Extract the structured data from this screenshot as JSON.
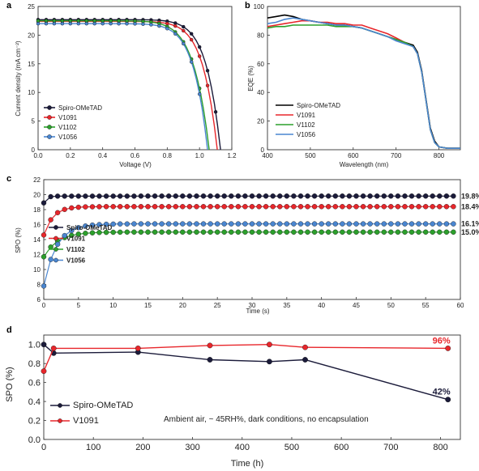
{
  "colors": {
    "spiro": "#1b1b3a",
    "v1091": "#e8262b",
    "v1102": "#2ca02c",
    "v1056": "#4a86d0"
  },
  "chart_data": [
    {
      "panel": "a",
      "type": "line",
      "xlabel": "Voltage (V)",
      "ylabel": "Current density (mA cm⁻²)",
      "xlim": [
        0.0,
        1.2
      ],
      "ylim": [
        0,
        25
      ],
      "xticks": [
        "0.0",
        "0.2",
        "0.4",
        "0.6",
        "0.8",
        "1.0",
        "1.2"
      ],
      "yticks": [
        "0",
        "5",
        "10",
        "15",
        "20",
        "25"
      ],
      "legend": "bottom-left",
      "series": [
        {
          "name": "Spiro-OMeTAD",
          "color": "#1b1b3a",
          "jsc": 22.7,
          "voc": 1.13,
          "fill": 0.84,
          "marker": true
        },
        {
          "name": "V1091",
          "color": "#e8262b",
          "jsc": 22.4,
          "voc": 1.11,
          "fill": 0.82,
          "marker": true
        },
        {
          "name": "V1102",
          "color": "#2ca02c",
          "jsc": 22.5,
          "voc": 1.06,
          "fill": 0.72,
          "marker": true
        },
        {
          "name": "V1056",
          "color": "#4a86d0",
          "jsc": 22.0,
          "voc": 1.05,
          "fill": 0.78,
          "marker": true
        }
      ]
    },
    {
      "panel": "b",
      "type": "line",
      "xlabel": "Wavelength (nm)",
      "ylabel": "EQE (%)",
      "xlim": [
        400,
        850
      ],
      "ylim": [
        0,
        100
      ],
      "xticks": [
        "400",
        "500",
        "600",
        "700",
        "800"
      ],
      "yticks": [
        "0",
        "20",
        "40",
        "60",
        "80",
        "100"
      ],
      "legend": "bottom-left",
      "series": [
        {
          "name": "Spiro-OMeTAD",
          "color": "#000000",
          "x": [
            400,
            420,
            440,
            460,
            480,
            500,
            520,
            540,
            560,
            580,
            600,
            620,
            640,
            660,
            680,
            700,
            720,
            740,
            750,
            760,
            770,
            780,
            790,
            800,
            820,
            840,
            850
          ],
          "y": [
            92,
            93,
            94,
            93,
            91,
            90,
            89,
            88,
            87,
            87,
            86,
            85,
            83,
            81,
            79,
            77,
            75,
            73,
            68,
            55,
            35,
            15,
            6,
            2,
            1,
            1,
            1
          ]
        },
        {
          "name": "V1091",
          "color": "#e8262b",
          "x": [
            400,
            420,
            440,
            460,
            480,
            500,
            520,
            540,
            560,
            580,
            600,
            620,
            640,
            660,
            680,
            700,
            720,
            740,
            750,
            760,
            770,
            780,
            790,
            800,
            820,
            840,
            850
          ],
          "y": [
            86,
            87,
            88,
            89,
            90,
            90,
            89,
            89,
            88,
            88,
            87,
            87,
            85,
            83,
            81,
            78,
            75,
            72,
            67,
            54,
            34,
            14,
            5,
            2,
            1,
            1,
            1
          ]
        },
        {
          "name": "V1102",
          "color": "#2ca02c",
          "x": [
            400,
            420,
            440,
            460,
            480,
            500,
            520,
            540,
            560,
            580,
            600,
            620,
            640,
            660,
            680,
            700,
            720,
            740,
            750,
            760,
            770,
            780,
            790,
            800,
            820,
            840,
            850
          ],
          "y": [
            85,
            86,
            86,
            87,
            87,
            87,
            87,
            87,
            86,
            86,
            86,
            85,
            83,
            81,
            79,
            77,
            75,
            72,
            67,
            54,
            34,
            14,
            5,
            2,
            1,
            1,
            1
          ]
        },
        {
          "name": "V1056",
          "color": "#4a86d0",
          "x": [
            400,
            420,
            440,
            460,
            480,
            500,
            520,
            540,
            560,
            580,
            600,
            620,
            640,
            660,
            680,
            700,
            720,
            740,
            750,
            760,
            770,
            780,
            790,
            800,
            820,
            840,
            850
          ],
          "y": [
            88,
            89,
            91,
            92,
            91,
            90,
            89,
            88,
            87,
            87,
            86,
            85,
            83,
            81,
            79,
            76,
            74,
            72,
            67,
            54,
            34,
            14,
            5,
            2,
            1,
            1,
            1
          ]
        }
      ]
    },
    {
      "panel": "c",
      "type": "line",
      "xlabel": "Time (s)",
      "ylabel": "SPO (%)",
      "xlim": [
        0,
        60
      ],
      "ylim": [
        6,
        22
      ],
      "xticks": [
        "0",
        "5",
        "10",
        "15",
        "20",
        "25",
        "30",
        "35",
        "40",
        "45",
        "50",
        "55",
        "60"
      ],
      "yticks": [
        "6",
        "8",
        "10",
        "12",
        "14",
        "16",
        "18",
        "20",
        "22"
      ],
      "legend": "bottom-left",
      "series": [
        {
          "name": "Spiro-OMeTAD",
          "color": "#1b1b3a",
          "start": 18.9,
          "final": 19.8,
          "tau": 0.4,
          "end_label": "19.8%"
        },
        {
          "name": "V1091",
          "color": "#e8262b",
          "start": 14.6,
          "final": 18.4,
          "tau": 1.3,
          "end_label": "18.4%"
        },
        {
          "name": "V1102",
          "color": "#2ca02c",
          "start": 11.7,
          "final": 15.0,
          "tau": 2.0,
          "end_label": "15.0%"
        },
        {
          "name": "V1056",
          "color": "#4a86d0",
          "start": 7.8,
          "final": 16.1,
          "tau": 1.8,
          "end_label": "16.1%"
        }
      ]
    },
    {
      "panel": "d",
      "type": "line",
      "xlabel": "Time (h)",
      "ylabel": "SPO (%)",
      "xlim": [
        0,
        840
      ],
      "ylim": [
        0.0,
        1.1
      ],
      "xticks": [
        "0",
        "100",
        "200",
        "300",
        "400",
        "500",
        "600",
        "700",
        "800"
      ],
      "yticks": [
        "0.0",
        "0.2",
        "0.4",
        "0.6",
        "0.8",
        "1.0"
      ],
      "legend": "bottom-left",
      "annotation": "Ambient air, ~ 45RH%, dark conditions, no encapsulation",
      "series": [
        {
          "name": "Spiro-OMeTAD",
          "color": "#1b1b3a",
          "x": [
            0,
            20,
            190,
            335,
            455,
            527,
            815
          ],
          "y": [
            1.0,
            0.91,
            0.92,
            0.84,
            0.82,
            0.84,
            0.42
          ],
          "end_label": "42%"
        },
        {
          "name": "V1091",
          "color": "#e8262b",
          "x": [
            0,
            20,
            190,
            335,
            455,
            527,
            815
          ],
          "y": [
            0.72,
            0.96,
            0.96,
            0.99,
            1.0,
            0.97,
            0.96
          ],
          "end_label": "96%"
        }
      ]
    }
  ]
}
